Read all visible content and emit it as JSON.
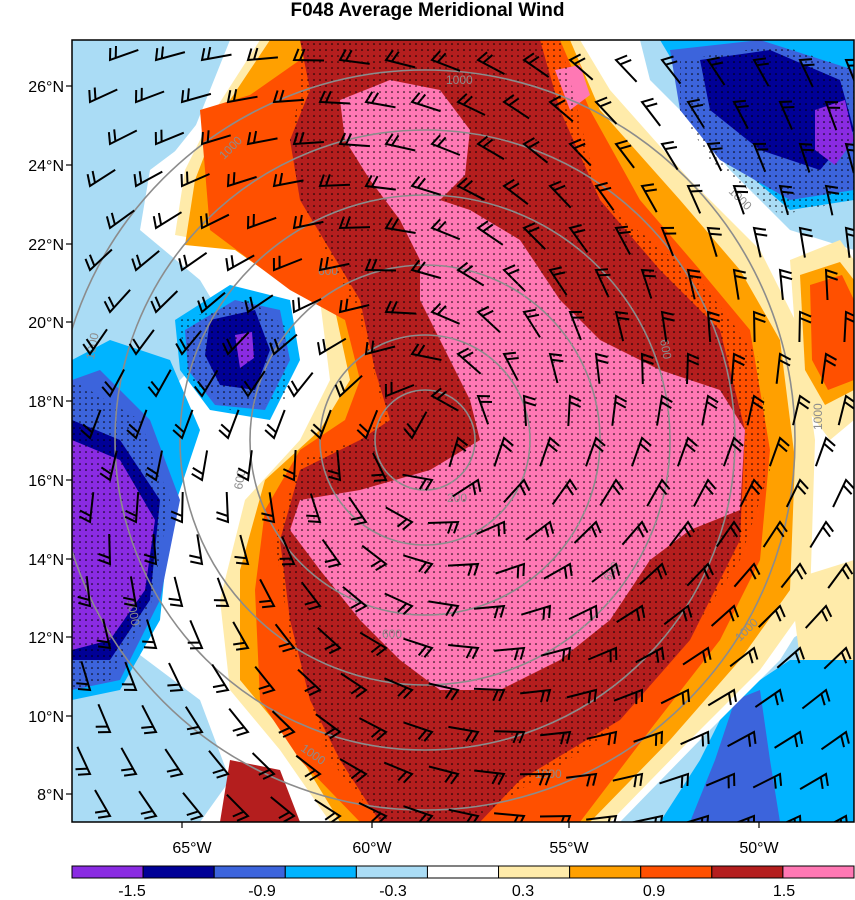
{
  "title": "F048 Average Meridional Wind",
  "lat_labels": [
    "26°N",
    "24°N",
    "22°N",
    "20°N",
    "18°N",
    "16°N",
    "14°N",
    "12°N",
    "10°N",
    "8°N"
  ],
  "lon_labels": [
    "65°W",
    "60°W",
    "55°W",
    "50°W"
  ],
  "range_ring_labels": [
    "200",
    "600",
    "1000"
  ],
  "colorbar": {
    "labels": [
      "-1.5",
      "-0.9",
      "-0.3",
      "0.3",
      "0.9",
      "1.5"
    ],
    "colors": [
      "#8a2be2",
      "#000096",
      "#3c64dc",
      "#00b4ff",
      "#aadcf5",
      "#ffffff",
      "#ffebaa",
      "#ffa000",
      "#ff5000",
      "#b41e1e",
      "#ff78b4"
    ]
  },
  "colors": {
    "pink": "#ff78b4",
    "darkred": "#b41e1e",
    "red": "#ff5000",
    "orange": "#ffa000",
    "yellow": "#ffebaa",
    "lightblue": "#aadcf5",
    "cyan": "#00b4ff",
    "blue": "#3c64dc",
    "navy": "#000096",
    "purple": "#8a2be2"
  }
}
